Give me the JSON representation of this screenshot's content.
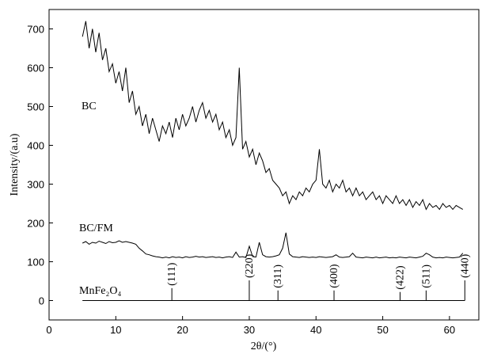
{
  "chart_data": {
    "type": "line",
    "x_label": "2θ/(°)",
    "y_label": "Intensity/(a.u)",
    "xlim": [
      0,
      64.4
    ],
    "ylim": [
      -50,
      750
    ],
    "xticks": [
      0,
      10,
      20,
      30,
      40,
      50,
      60
    ],
    "yticks": [
      0,
      100,
      200,
      300,
      400,
      500,
      600,
      700
    ],
    "x": [
      5,
      5.5,
      6,
      6.5,
      7,
      7.5,
      8,
      8.5,
      9,
      9.5,
      10,
      10.5,
      11,
      11.5,
      12,
      12.5,
      13,
      13.5,
      14,
      14.5,
      15,
      15.5,
      16,
      16.5,
      17,
      17.5,
      18,
      18.5,
      19,
      19.5,
      20,
      20.5,
      21,
      21.5,
      22,
      22.5,
      23,
      23.5,
      24,
      24.5,
      25,
      25.5,
      26,
      26.5,
      27,
      27.5,
      28,
      28.5,
      29,
      29.5,
      30,
      30.5,
      31,
      31.5,
      32,
      32.5,
      33,
      33.5,
      34,
      34.5,
      35,
      35.5,
      36,
      36.5,
      37,
      37.5,
      38,
      38.5,
      39,
      39.5,
      40,
      40.5,
      41,
      41.5,
      42,
      42.5,
      43,
      43.5,
      44,
      44.5,
      45,
      45.5,
      46,
      46.5,
      47,
      47.5,
      48,
      48.5,
      49,
      49.5,
      50,
      50.5,
      51,
      51.5,
      52,
      52.5,
      53,
      53.5,
      54,
      54.5,
      55,
      55.5,
      56,
      56.5,
      57,
      57.5,
      58,
      58.5,
      59,
      59.5,
      60,
      60.5,
      61,
      61.5,
      62
    ],
    "series": [
      {
        "name": "BC",
        "color": "#000000",
        "values": [
          680,
          720,
          650,
          700,
          640,
          690,
          620,
          650,
          590,
          610,
          560,
          590,
          540,
          600,
          510,
          540,
          480,
          500,
          450,
          480,
          430,
          470,
          440,
          410,
          450,
          430,
          460,
          420,
          470,
          440,
          480,
          450,
          470,
          500,
          460,
          490,
          510,
          470,
          490,
          460,
          480,
          440,
          460,
          420,
          440,
          400,
          420,
          600,
          390,
          410,
          370,
          390,
          350,
          380,
          360,
          330,
          340,
          310,
          300,
          290,
          270,
          280,
          250,
          270,
          260,
          280,
          270,
          290,
          280,
          300,
          310,
          390,
          300,
          290,
          310,
          280,
          300,
          290,
          310,
          280,
          290,
          270,
          290,
          270,
          280,
          260,
          270,
          280,
          260,
          270,
          250,
          270,
          260,
          250,
          270,
          250,
          260,
          245,
          260,
          240,
          255,
          245,
          260,
          235,
          250,
          240,
          245,
          235,
          250,
          240,
          245,
          235,
          245,
          240,
          235
        ]
      },
      {
        "name": "BC/FM",
        "color": "#000000",
        "values": [
          148,
          152,
          145,
          150,
          148,
          153,
          150,
          147,
          152,
          149,
          150,
          154,
          150,
          152,
          150,
          148,
          145,
          135,
          128,
          120,
          118,
          115,
          113,
          112,
          110,
          112,
          110,
          113,
          111,
          112,
          110,
          113,
          111,
          112,
          114,
          112,
          113,
          111,
          112,
          113,
          111,
          112,
          110,
          112,
          113,
          111,
          125,
          112,
          113,
          111,
          140,
          113,
          112,
          150,
          118,
          113,
          112,
          113,
          115,
          118,
          135,
          175,
          120,
          113,
          112,
          111,
          113,
          112,
          111,
          112,
          111,
          113,
          112,
          111,
          112,
          113,
          118,
          112,
          111,
          112,
          113,
          122,
          112,
          111,
          110,
          112,
          111,
          110,
          112,
          110,
          111,
          112,
          110,
          111,
          110,
          112,
          111,
          110,
          112,
          111,
          110,
          112,
          114,
          122,
          118,
          112,
          110,
          111,
          110,
          112,
          111,
          110,
          111,
          112,
          122
        ]
      }
    ],
    "reference": {
      "name": "MnFe₂O₄",
      "x": [
        18.4,
        30.0,
        34.3,
        42.7,
        52.6,
        56.5,
        62.3
      ],
      "values": [
        32,
        52,
        26,
        26,
        22,
        26,
        52
      ],
      "labels": [
        "(111)",
        "(220)",
        "(311)",
        "(400)",
        "(422)",
        "(511)",
        "(440)"
      ]
    }
  }
}
